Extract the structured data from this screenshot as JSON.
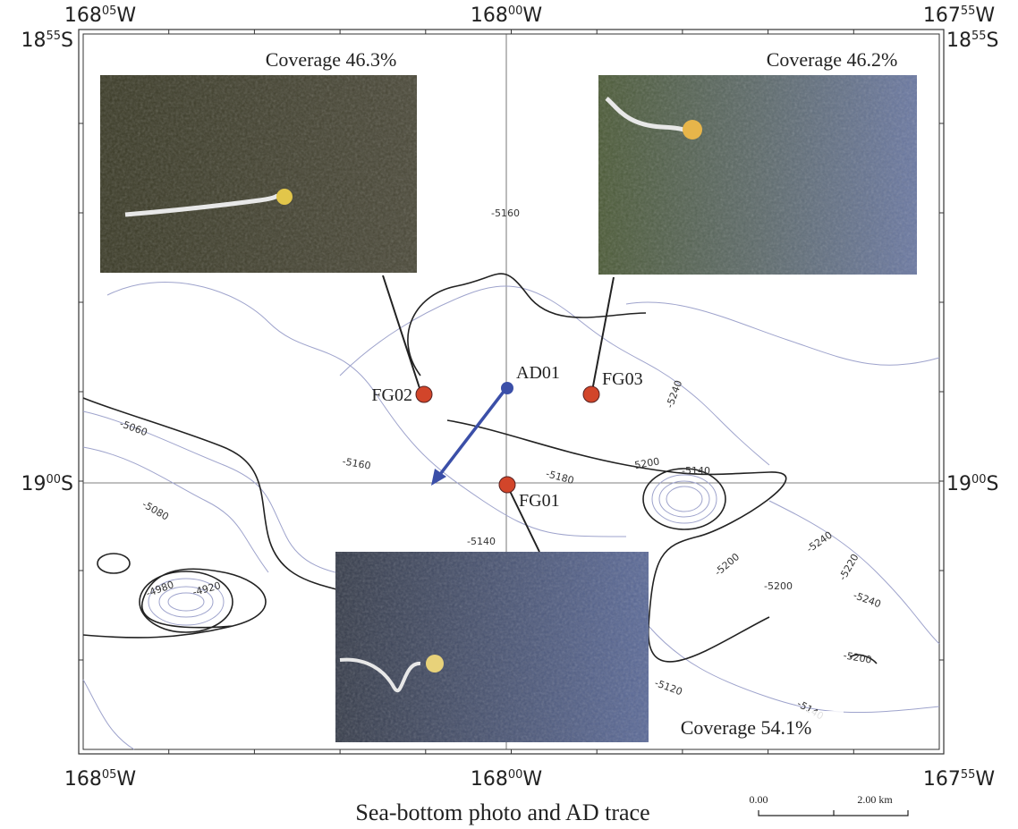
{
  "map": {
    "title": "Sea-bottom photo and AD trace",
    "scale": {
      "start": "0.00",
      "end": "2.00 km"
    },
    "lon_labels": [
      {
        "deg": "168",
        "min": "05",
        "hem": "W"
      },
      {
        "deg": "168",
        "min": "00",
        "hem": "W"
      },
      {
        "deg": "167",
        "min": "55",
        "hem": "W"
      }
    ],
    "lat_labels": [
      {
        "deg": "18",
        "min": "55",
        "hem": "S"
      },
      {
        "deg": "19",
        "min": "00",
        "hem": "S"
      }
    ],
    "stations": [
      {
        "label": "FG02"
      },
      {
        "label": "AD01"
      },
      {
        "label": "FG03"
      },
      {
        "label": "FG01"
      }
    ],
    "photos": [
      {
        "caption": "Coverage 46.3%"
      },
      {
        "caption": "Coverage 46.2%"
      },
      {
        "caption": "Coverage 54.1%"
      }
    ],
    "contour_labels": [
      "-5160",
      "-5060",
      "-5080",
      "-5160",
      "-5180",
      "-5200",
      "-5140",
      "-5140",
      "-5240",
      "-5240",
      "-5220",
      "-5200",
      "-5200",
      "-5240",
      "-4980",
      "-4920",
      "-5120",
      "-5140",
      "-5200"
    ]
  }
}
